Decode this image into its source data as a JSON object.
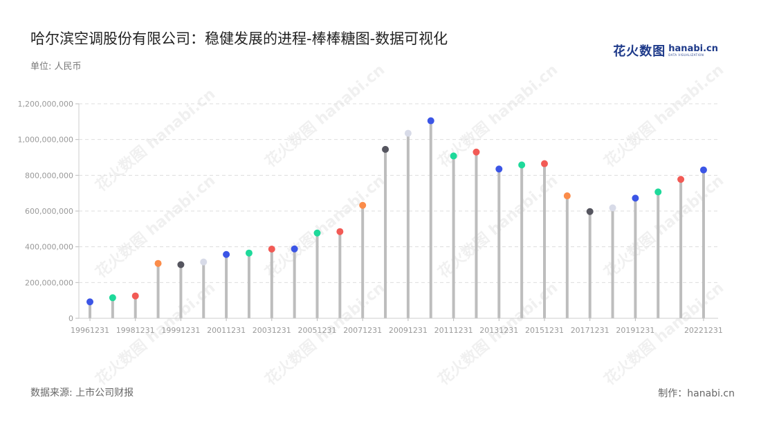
{
  "header": {
    "title": "哈尔滨空调股份有限公司：稳健发展的进程-棒棒糖图-数据可视化",
    "unit": "单位: 人民币"
  },
  "logo": {
    "cn": "花火数图",
    "en": "hanabi.cn",
    "sub": "DATA VISUALIZATION"
  },
  "footer": {
    "source": "数据来源: 上市公司财报",
    "credit": "制作：hanabi.cn"
  },
  "watermark_text": "花火数图 hanabi.cn",
  "chart_data": {
    "type": "lollipop",
    "ylim": [
      0,
      1200000000
    ],
    "y_ticks": [
      0,
      200000000,
      400000000,
      600000000,
      800000000,
      1000000000,
      1200000000
    ],
    "y_tick_labels": [
      "0",
      "200,000,000",
      "400,000,000",
      "600,000,000",
      "800,000,000",
      "1,000,000,000",
      "1,200,000,000"
    ],
    "x_tick_labels": [
      "19961231",
      "19981231",
      "19991231",
      "20011231",
      "20031231",
      "20051231",
      "20071231",
      "20091231",
      "20111231",
      "20131231",
      "20151231",
      "20171231",
      "20191231",
      "20221231"
    ],
    "grid": true,
    "points": [
      {
        "value": 92000000,
        "color": "#3b55e6"
      },
      {
        "value": 115000000,
        "color": "#1ed99a"
      },
      {
        "value": 125000000,
        "color": "#f25a55"
      },
      {
        "value": 307000000,
        "color": "#fb8c4a"
      },
      {
        "value": 300000000,
        "color": "#55555f"
      },
      {
        "value": 315000000,
        "color": "#d8dbe8"
      },
      {
        "value": 357000000,
        "color": "#3b55e6"
      },
      {
        "value": 365000000,
        "color": "#1ed99a"
      },
      {
        "value": 387000000,
        "color": "#f25a55"
      },
      {
        "value": 388000000,
        "color": "#3b55e6"
      },
      {
        "value": 477000000,
        "color": "#1ed99a"
      },
      {
        "value": 485000000,
        "color": "#f25a55"
      },
      {
        "value": 632000000,
        "color": "#fb8c4a"
      },
      {
        "value": 945000000,
        "color": "#55555f"
      },
      {
        "value": 1035000000,
        "color": "#d8dbe8"
      },
      {
        "value": 1105000000,
        "color": "#3b55e6"
      },
      {
        "value": 908000000,
        "color": "#1ed99a"
      },
      {
        "value": 930000000,
        "color": "#f25a55"
      },
      {
        "value": 835000000,
        "color": "#3b55e6"
      },
      {
        "value": 858000000,
        "color": "#1ed99a"
      },
      {
        "value": 865000000,
        "color": "#f25a55"
      },
      {
        "value": 685000000,
        "color": "#fb8c4a"
      },
      {
        "value": 597000000,
        "color": "#55555f"
      },
      {
        "value": 618000000,
        "color": "#d8dbe8"
      },
      {
        "value": 672000000,
        "color": "#3b55e6"
      },
      {
        "value": 707000000,
        "color": "#1ed99a"
      },
      {
        "value": 777000000,
        "color": "#f25a55"
      },
      {
        "value": 830000000,
        "color": "#3b55e6"
      }
    ]
  }
}
